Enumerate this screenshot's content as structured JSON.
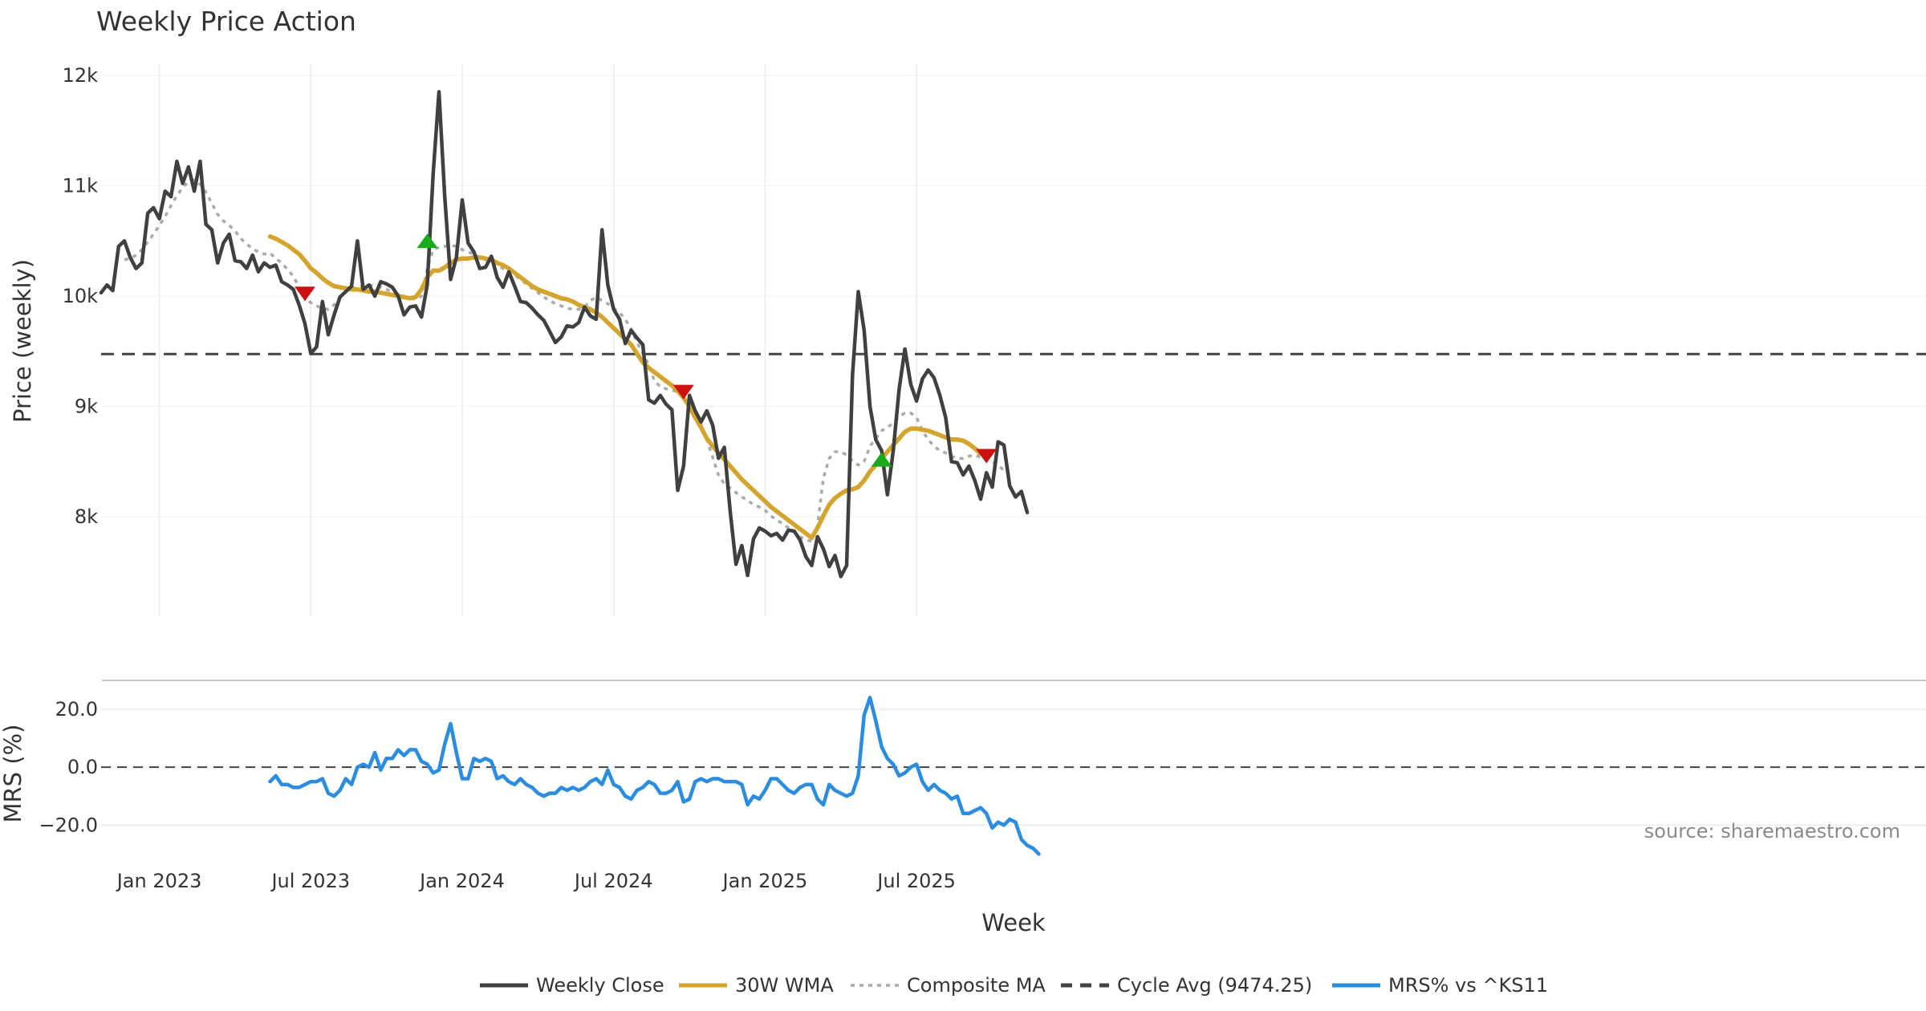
{
  "chart_data": {
    "type": "line",
    "title": "Weekly Price Action",
    "xlabel": "Week",
    "source": "source: sharemaestro.com",
    "x_ticks": [
      "Jan 2023",
      "Jul 2023",
      "Jan 2024",
      "Jul 2024",
      "Jan 2025",
      "Jul 2025"
    ],
    "price_panel": {
      "ylabel": "Price (weekly)",
      "y_ticks": [
        "8k",
        "9k",
        "10k",
        "11k",
        "12k"
      ],
      "y_tick_values": [
        8000,
        9000,
        10000,
        11000,
        12000
      ],
      "ylim": [
        7100,
        12100
      ],
      "cycle_avg": 9474.25,
      "series": [
        {
          "name": "Weekly Close",
          "color": "#404040",
          "start_week": 0,
          "values": [
            10030,
            10100,
            10050,
            10450,
            10500,
            10350,
            10250,
            10300,
            10750,
            10800,
            10700,
            10950,
            10900,
            11220,
            11020,
            11170,
            10950,
            11220,
            10650,
            10600,
            10300,
            10480,
            10560,
            10320,
            10310,
            10250,
            10370,
            10220,
            10300,
            10260,
            10280,
            10130,
            10100,
            10060,
            9920,
            9750,
            9480,
            9540,
            9950,
            9650,
            9830,
            9990,
            10040,
            10090,
            10500,
            10060,
            10100,
            10000,
            10130,
            10110,
            10080,
            10000,
            9830,
            9900,
            9910,
            9810,
            10100,
            11100,
            11850,
            10900,
            10150,
            10350,
            10870,
            10480,
            10400,
            10250,
            10260,
            10360,
            10170,
            10080,
            10220,
            10090,
            9950,
            9940,
            9890,
            9830,
            9780,
            9680,
            9580,
            9630,
            9730,
            9720,
            9760,
            9900,
            9820,
            9790,
            10600,
            10100,
            9880,
            9790,
            9570,
            9690,
            9620,
            9560,
            9060,
            9030,
            9100,
            9020,
            8970,
            8240,
            8460,
            9100,
            8960,
            8860,
            8960,
            8830,
            8530,
            8630,
            8050,
            7570,
            7740,
            7470,
            7800,
            7900,
            7870,
            7830,
            7850,
            7790,
            7880,
            7870,
            7790,
            7640,
            7560,
            7820,
            7710,
            7550,
            7650,
            7460,
            7560,
            9280,
            10040,
            9690,
            9000,
            8700,
            8600,
            8200,
            8600,
            9150,
            9520,
            9200,
            9050,
            9250,
            9330,
            9260,
            9100,
            8900,
            8500,
            8490,
            8380,
            8460,
            8330,
            8160,
            8400,
            8270,
            8680,
            8650,
            8280,
            8180,
            8230,
            8040
          ]
        },
        {
          "name": "30W WMA",
          "color": "#d4a42c",
          "start_week": 29,
          "values": [
            10540,
            10520,
            10490,
            10460,
            10420,
            10380,
            10320,
            10250,
            10210,
            10160,
            10120,
            10090,
            10080,
            10070,
            10060,
            10060,
            10050,
            10040,
            10040,
            10030,
            10020,
            10010,
            10000,
            9990,
            9980,
            9990,
            10060,
            10170,
            10230,
            10230,
            10260,
            10300,
            10330,
            10340,
            10340,
            10350,
            10350,
            10340,
            10330,
            10300,
            10280,
            10250,
            10210,
            10170,
            10130,
            10090,
            10060,
            10040,
            10020,
            10000,
            9980,
            9970,
            9950,
            9920,
            9900,
            9880,
            9850,
            9810,
            9760,
            9710,
            9660,
            9610,
            9560,
            9480,
            9400,
            9350,
            9310,
            9270,
            9230,
            9190,
            9140,
            9080,
            9000,
            8900,
            8810,
            8710,
            8640,
            8580,
            8520,
            8460,
            8400,
            8340,
            8290,
            8240,
            8190,
            8140,
            8090,
            8050,
            8010,
            7970,
            7930,
            7890,
            7850,
            7810,
            7900,
            8010,
            8110,
            8170,
            8210,
            8240,
            8250,
            8270,
            8330,
            8410,
            8470,
            8530,
            8590,
            8650,
            8710,
            8770,
            8800,
            8800,
            8790,
            8780,
            8760,
            8740,
            8720,
            8700,
            8700,
            8690,
            8660,
            8620,
            8570
          ]
        },
        {
          "name": "Composite MA",
          "color": "#aaaaaa",
          "dash": "dotted",
          "start_week": 4,
          "values": [
            10330,
            10340,
            10370,
            10420,
            10490,
            10560,
            10640,
            10720,
            10820,
            10910,
            10980,
            11040,
            11050,
            11010,
            10940,
            10840,
            10740,
            10680,
            10640,
            10590,
            10520,
            10470,
            10430,
            10400,
            10380,
            10390,
            10340,
            10300,
            10240,
            10180,
            10080,
            9980,
            9940,
            9910,
            9890,
            9880,
            9920,
            9990,
            10040,
            10070,
            10080,
            10090,
            10100,
            10090,
            10080,
            10060,
            10040,
            10020,
            10000,
            9980,
            9970,
            10000,
            10250,
            10420,
            10440,
            10450,
            10460,
            10450,
            10420,
            10400,
            10380,
            10350,
            10330,
            10300,
            10280,
            10250,
            10220,
            10190,
            10150,
            10110,
            10070,
            10030,
            9990,
            9960,
            9930,
            9910,
            9890,
            9880,
            9880,
            9900,
            9960,
            9990,
            9960,
            9930,
            9890,
            9850,
            9790,
            9700,
            9580,
            9480,
            9380,
            9230,
            9180,
            9160,
            9150,
            9130,
            9100,
            9050,
            8960,
            8840,
            8700,
            8540,
            8380,
            8300,
            8260,
            8220,
            8180,
            8150,
            8110,
            8090,
            8060,
            8010,
            7970,
            7940,
            7900,
            7860,
            7820,
            7790,
            7780,
            7920,
            8350,
            8530,
            8590,
            8590,
            8560,
            8510,
            8470,
            8500,
            8640,
            8710,
            8780,
            8810,
            8850,
            8910,
            8940,
            8940,
            8900,
            8780,
            8700,
            8640,
            8600,
            8580,
            8550,
            8530,
            8530,
            8550,
            8560,
            8540,
            8520,
            8500,
            8470,
            8420
          ]
        }
      ],
      "signals": [
        {
          "type": "sell",
          "week": 35,
          "price": 10020,
          "color": "#cc1111"
        },
        {
          "type": "buy",
          "week": 56,
          "price": 10500,
          "color": "#1aaa1a"
        },
        {
          "type": "sell",
          "week": 100,
          "price": 9130,
          "color": "#cc1111"
        },
        {
          "type": "buy",
          "week": 134,
          "price": 8520,
          "color": "#1aaa1a"
        },
        {
          "type": "sell",
          "week": 152,
          "price": 8550,
          "color": "#cc1111"
        }
      ]
    },
    "mrs_panel": {
      "ylabel": "MRS (%)",
      "y_ticks": [
        "−20.0",
        "0.0",
        "20.0"
      ],
      "y_tick_values": [
        -20,
        0,
        20
      ],
      "ylim": [
        -31,
        28
      ],
      "zero_line": 0,
      "series": [
        {
          "name": "MRS% vs ^KS11",
          "color": "#2b8de0",
          "start_week": 29,
          "values": [
            -5,
            -3,
            -6,
            -6,
            -7,
            -7,
            -6,
            -5,
            -5,
            -4,
            -9,
            -10,
            -8,
            -4,
            -6,
            0,
            1,
            0,
            5,
            -1,
            3,
            3,
            6,
            4,
            6,
            6,
            2,
            1,
            -2,
            -1,
            8,
            15,
            5,
            -4,
            -4,
            3,
            2,
            3,
            2,
            -4,
            -3,
            -5,
            -6,
            -4,
            -6,
            -7,
            -9,
            -10,
            -9,
            -9,
            -7,
            -8,
            -7,
            -8,
            -7,
            -5,
            -4,
            -6,
            -1,
            -6,
            -7,
            -10,
            -11,
            -8,
            -7,
            -5,
            -6,
            -9,
            -9,
            -8,
            -5,
            -12,
            -11,
            -5,
            -4,
            -5,
            -4,
            -4,
            -5,
            -5,
            -5,
            -6,
            -13,
            -10,
            -11,
            -8,
            -4,
            -4,
            -6,
            -8,
            -9,
            -7,
            -6,
            -6,
            -11,
            -13,
            -6,
            -8,
            -9,
            -10,
            -9,
            -3,
            18,
            24,
            16,
            7,
            3,
            1,
            -3,
            -2,
            0,
            1,
            -5,
            -8,
            -6,
            -8,
            -9,
            -11,
            -10,
            -16,
            -16,
            -15,
            -14,
            -16,
            -21,
            -19,
            -20,
            -18,
            -19,
            -25,
            -27,
            -28,
            -30
          ]
        }
      ]
    },
    "legend": [
      {
        "label": "Weekly Close",
        "color": "#404040",
        "style": "solid"
      },
      {
        "label": "30W WMA",
        "color": "#d4a42c",
        "style": "solid"
      },
      {
        "label": "Composite MA",
        "color": "#aaaaaa",
        "style": "dotted"
      },
      {
        "label": "Cycle Avg (9474.25)",
        "color": "#444444",
        "style": "dashed"
      },
      {
        "label": "MRS% vs ^KS11",
        "color": "#2b8de0",
        "style": "solid"
      }
    ]
  }
}
